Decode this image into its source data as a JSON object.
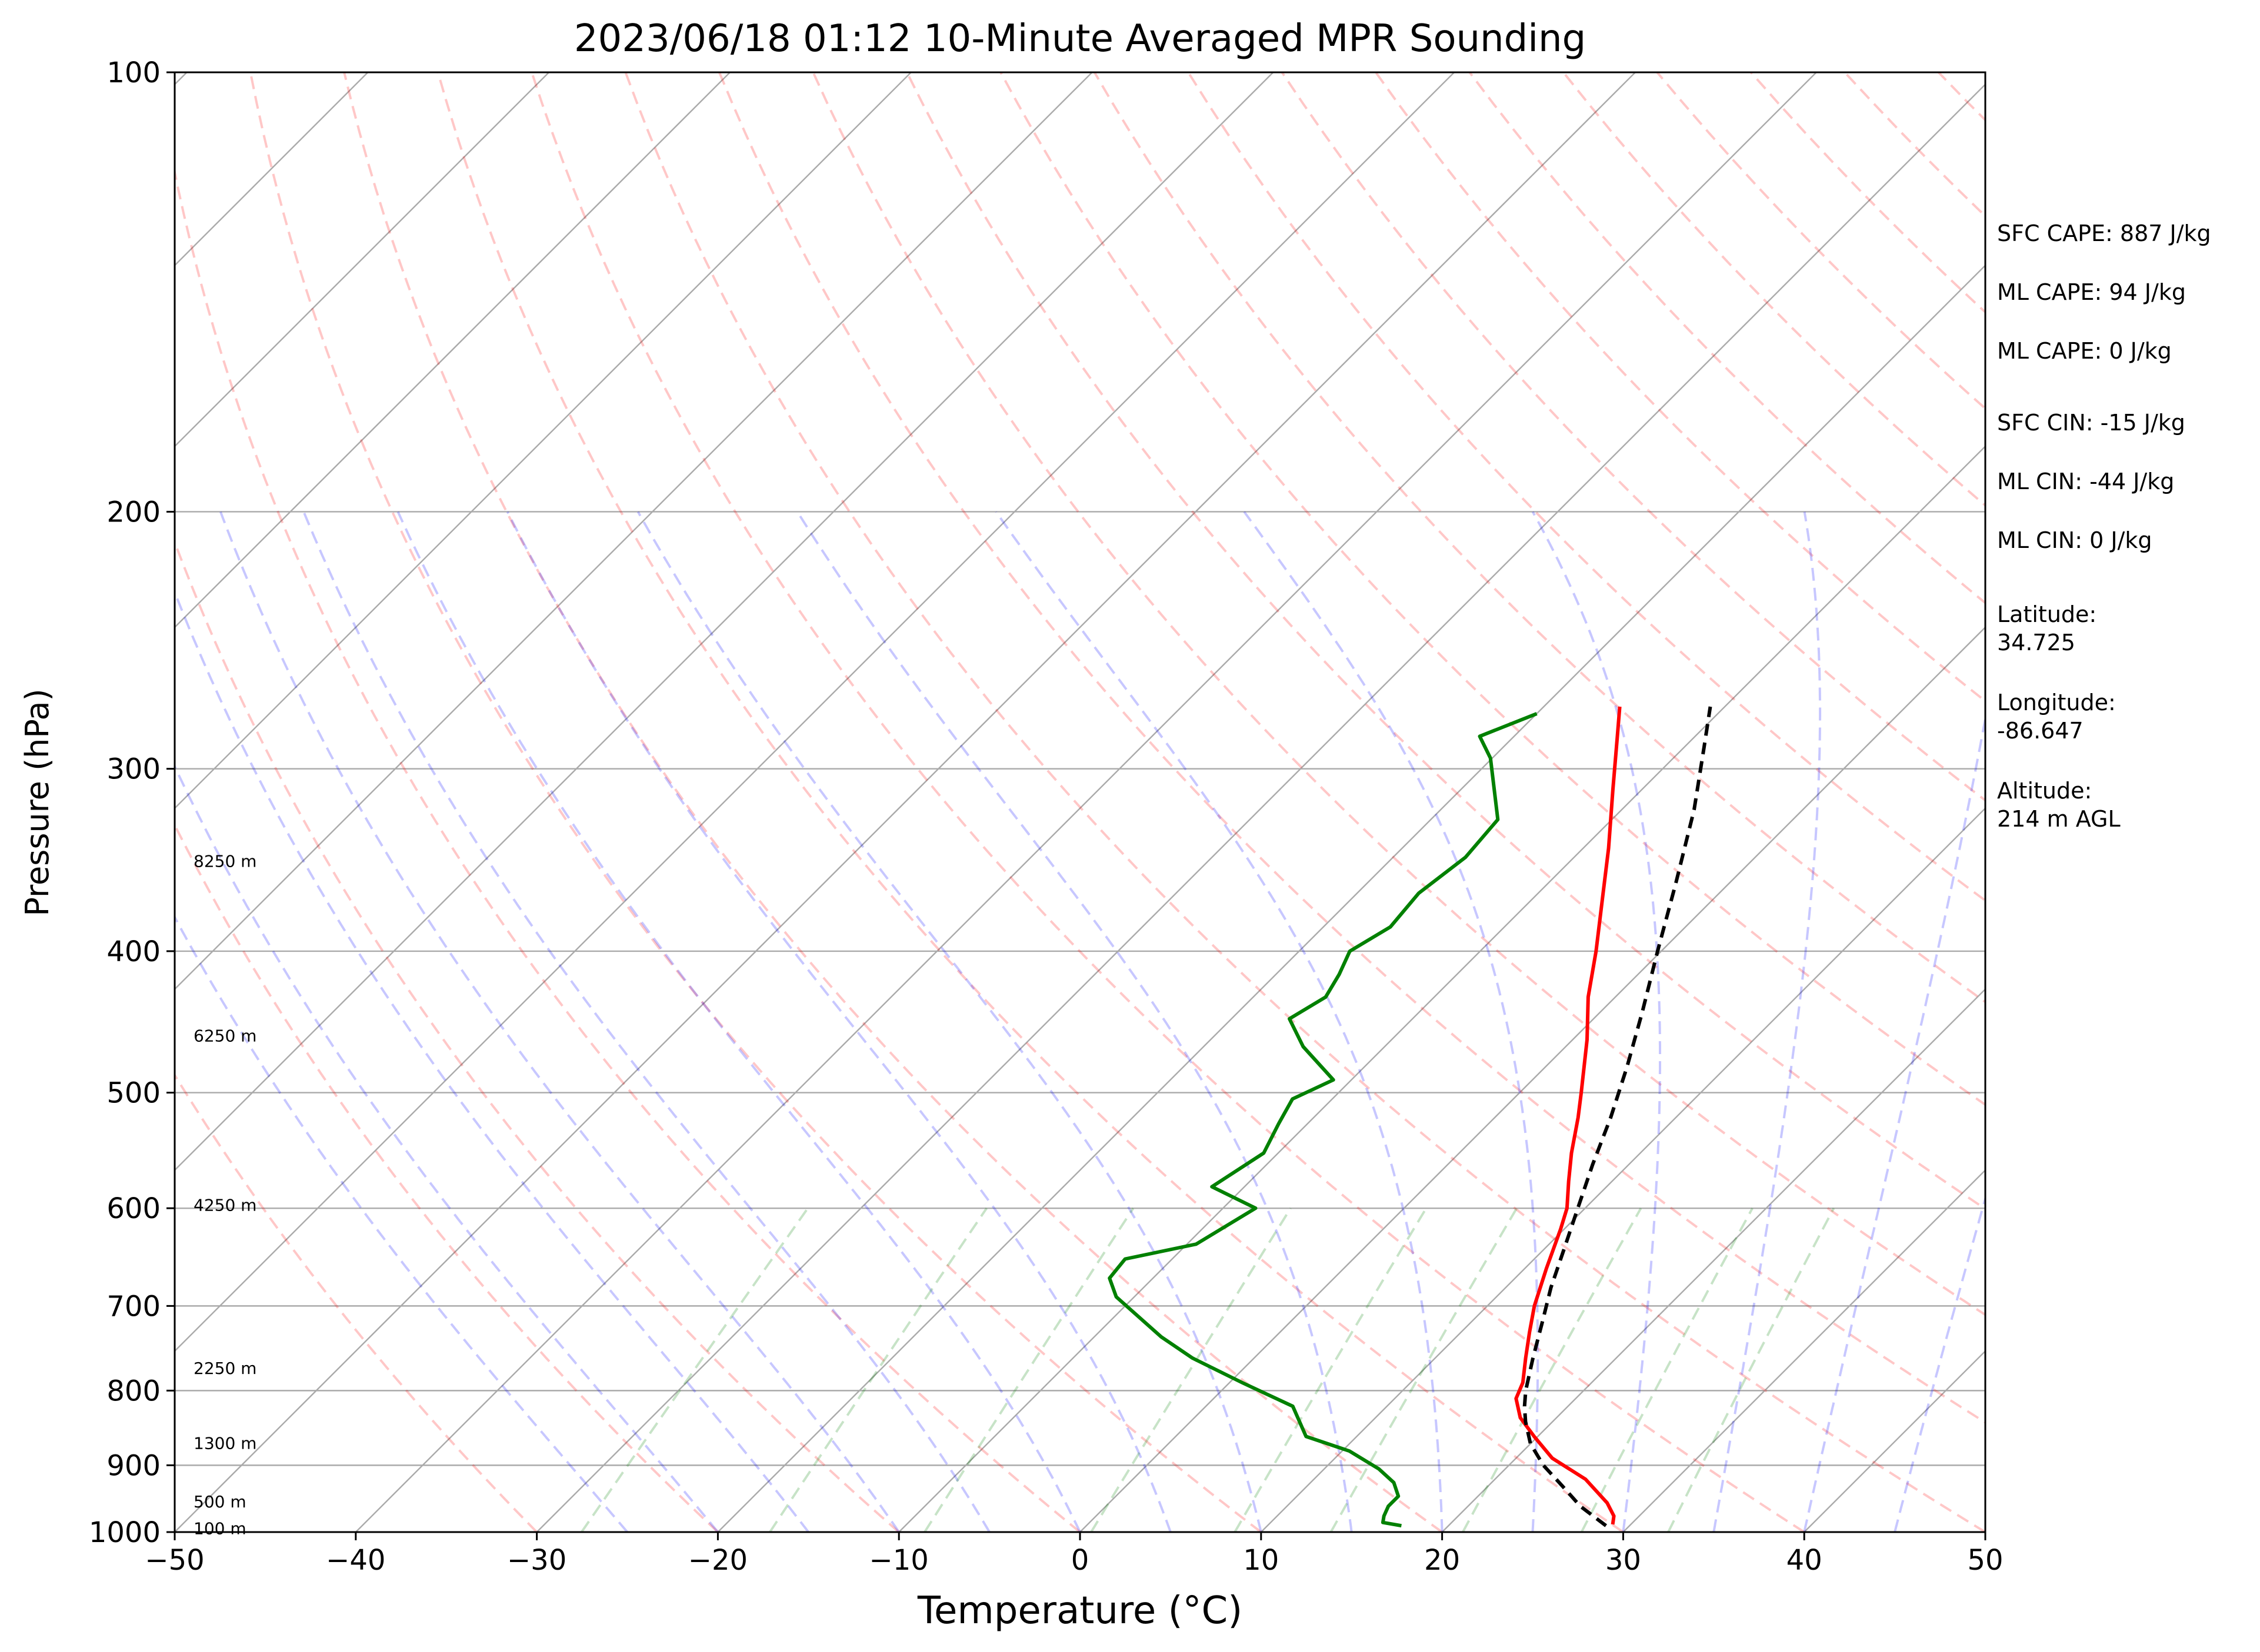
{
  "chart_data": {
    "type": "skew-t",
    "title": "2023/06/18 01:12 10-Minute Averaged MPR Sounding",
    "xlabel": "Temperature (°C)",
    "ylabel": "Pressure (hPa)",
    "xlim": [
      -50,
      50
    ],
    "ylim": [
      1000,
      100
    ],
    "y_scale": "log",
    "x_ticks": [
      -50,
      -40,
      -30,
      -20,
      -10,
      0,
      10,
      20,
      30,
      40,
      50
    ],
    "x_tick_labels": [
      "−50",
      "−40",
      "−30",
      "−20",
      "−10",
      "0",
      "10",
      "20",
      "30",
      "40",
      "50"
    ],
    "y_ticks": [
      100,
      200,
      300,
      400,
      500,
      600,
      700,
      800,
      900,
      1000
    ],
    "y_tick_labels": [
      "100",
      "200",
      "300",
      "400",
      "500",
      "600",
      "700",
      "800",
      "900",
      "1000"
    ],
    "grid": true,
    "height_labels": [
      {
        "text": "8250 m",
        "p": 347
      },
      {
        "text": "6250 m",
        "p": 457
      },
      {
        "text": "4250 m",
        "p": 597
      },
      {
        "text": "2250 m",
        "p": 772
      },
      {
        "text": "1300 m",
        "p": 869
      },
      {
        "text": "500 m",
        "p": 953
      },
      {
        "text": "100 m",
        "p": 994
      }
    ],
    "info_labels": [
      {
        "text": "SFC CAPE: 887 J/kg"
      },
      {
        "text": "ML CAPE: 94 J/kg"
      },
      {
        "text": "ML CAPE: 0 J/kg"
      },
      {
        "text": "SFC CIN: -15 J/kg"
      },
      {
        "text": "ML CIN: -44 J/kg"
      },
      {
        "text": "ML CIN: 0 J/kg"
      },
      {
        "text": "Latitude:",
        "value": "34.725"
      },
      {
        "text": "Longitude:",
        "value": "-86.647"
      },
      {
        "text": "Altitude:",
        "value": "214 m AGL"
      }
    ],
    "series": [
      {
        "role": "temperature",
        "color": "#ff0000",
        "points": [
          [
            988,
            29.0
          ],
          [
            975,
            28.6
          ],
          [
            955,
            27.5
          ],
          [
            920,
            25.0
          ],
          [
            890,
            22.0
          ],
          [
            860,
            19.8
          ],
          [
            835,
            18.0
          ],
          [
            810,
            16.7
          ],
          [
            790,
            16.2
          ],
          [
            760,
            15.0
          ],
          [
            730,
            13.8
          ],
          [
            700,
            12.6
          ],
          [
            660,
            11.2
          ],
          [
            620,
            9.8
          ],
          [
            600,
            9.0
          ],
          [
            575,
            7.6
          ],
          [
            550,
            6.2
          ],
          [
            520,
            4.6
          ],
          [
            500,
            3.4
          ],
          [
            460,
            0.8
          ],
          [
            430,
            -1.5
          ],
          [
            400,
            -3.6
          ],
          [
            370,
            -6.0
          ],
          [
            340,
            -8.6
          ],
          [
            310,
            -11.6
          ],
          [
            285,
            -14.3
          ],
          [
            272,
            -15.8
          ]
        ]
      },
      {
        "role": "dewpoint",
        "color": "#008000",
        "points": [
          [
            990,
            17.4
          ],
          [
            985,
            16.2
          ],
          [
            975,
            15.9
          ],
          [
            960,
            15.6
          ],
          [
            945,
            15.6
          ],
          [
            925,
            14.6
          ],
          [
            905,
            13.0
          ],
          [
            880,
            10.4
          ],
          [
            860,
            7.2
          ],
          [
            820,
            4.8
          ],
          [
            790,
            0.7
          ],
          [
            760,
            -3.4
          ],
          [
            735,
            -6.3
          ],
          [
            690,
            -11.0
          ],
          [
            670,
            -12.4
          ],
          [
            650,
            -12.6
          ],
          [
            635,
            -9.5
          ],
          [
            600,
            -8.2
          ],
          [
            580,
            -11.8
          ],
          [
            550,
            -10.8
          ],
          [
            525,
            -11.6
          ],
          [
            505,
            -12.2
          ],
          [
            490,
            -11.0
          ],
          [
            465,
            -14.5
          ],
          [
            445,
            -16.8
          ],
          [
            430,
            -16.0
          ],
          [
            415,
            -16.5
          ],
          [
            400,
            -17.2
          ],
          [
            385,
            -16.3
          ],
          [
            365,
            -16.6
          ],
          [
            345,
            -16.0
          ],
          [
            325,
            -16.3
          ],
          [
            295,
            -20.1
          ],
          [
            285,
            -21.9
          ],
          [
            275,
            -20.0
          ]
        ]
      },
      {
        "role": "parcel",
        "color": "#000000",
        "style": "dashed",
        "points": [
          [
            990,
            28.7
          ],
          [
            960,
            26.2
          ],
          [
            930,
            24.1
          ],
          [
            900,
            21.9
          ],
          [
            870,
            20.0
          ],
          [
            840,
            18.5
          ],
          [
            820,
            17.6
          ],
          [
            800,
            16.8
          ],
          [
            760,
            15.4
          ],
          [
            720,
            14.0
          ],
          [
            680,
            12.5
          ],
          [
            640,
            11.1
          ],
          [
            600,
            9.6
          ],
          [
            560,
            8.0
          ],
          [
            520,
            6.4
          ],
          [
            480,
            4.5
          ],
          [
            440,
            2.3
          ],
          [
            400,
            -0.2
          ],
          [
            360,
            -2.9
          ],
          [
            320,
            -6.0
          ],
          [
            290,
            -8.9
          ],
          [
            272,
            -10.8
          ]
        ]
      }
    ]
  }
}
